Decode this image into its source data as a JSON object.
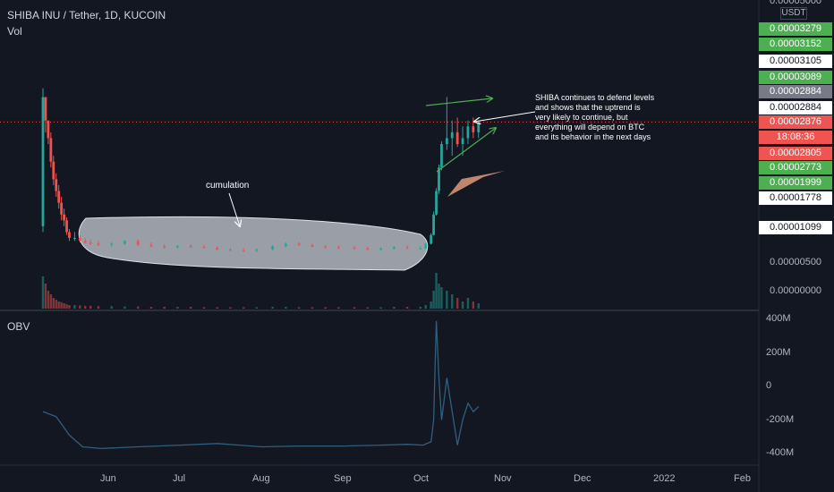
{
  "header": {
    "symbol": "SHIBA INU / Tether, 1D, KUCOIN",
    "vol_label": "Vol",
    "obv_label": "OBV"
  },
  "price_axis": {
    "currency": "USDT",
    "plain_ticks": [
      "0.00000000",
      "0.00000500"
    ],
    "partial_top": "0.00005000",
    "tags": [
      {
        "label": "0.00003279",
        "type": "green"
      },
      {
        "label": "0.00003152",
        "type": "green"
      },
      {
        "label": "0.00003105",
        "type": "white"
      },
      {
        "label": "0.00003089",
        "type": "green"
      },
      {
        "label": "0.00002884",
        "type": "gray"
      },
      {
        "label": "0.00002884",
        "type": "white"
      },
      {
        "label": "0.00002876",
        "type": "red"
      },
      {
        "label": "18:08:36",
        "type": "red"
      },
      {
        "label": "0.00002805",
        "type": "red"
      },
      {
        "label": "0.00002773",
        "type": "green"
      },
      {
        "label": "0.00001999",
        "type": "green"
      },
      {
        "label": "0.00001778",
        "type": "white"
      },
      {
        "label": "0.00001099",
        "type": "white"
      }
    ]
  },
  "obv_axis": {
    "ticks": [
      "400M",
      "200M",
      "0",
      "-200M",
      "-400M"
    ]
  },
  "time_axis": {
    "labels": [
      "Jun",
      "Jul",
      "Aug",
      "Sep",
      "Oct",
      "Nov",
      "Dec",
      "2022",
      "Feb"
    ]
  },
  "annotations": {
    "cumulation": "cumulation",
    "note_lines": [
      "SHIBA continues to defend levels",
      "and shows that the uptrend is",
      "very likely to continue, but",
      "everything will depend on BTC",
      "and its behavior in the next days"
    ]
  },
  "colors": {
    "bg": "#131722",
    "up": "#26a69a",
    "down": "#ef5350",
    "obv_line": "#2f5f7f",
    "green_tag": "#4caf50",
    "red_tag": "#f05450",
    "highlight": "#b8bcc4",
    "arrow": "#4caf50"
  },
  "chart_data": [
    {
      "type": "candlestick",
      "title": "SHIBA INU / Tether, 1D, KUCOIN",
      "ylabel": "USDT",
      "x": [
        "2021-05-10",
        "2021-05-11",
        "2021-05-12",
        "2021-05-13",
        "2021-05-14",
        "2021-05-15",
        "2021-05-16",
        "2021-05-17",
        "2021-05-18",
        "2021-05-19",
        "2021-05-20",
        "2021-05-22",
        "2021-05-24",
        "2021-05-26",
        "2021-05-28",
        "2021-05-31",
        "2021-06-05",
        "2021-06-10",
        "2021-06-15",
        "2021-06-20",
        "2021-06-25",
        "2021-06-30",
        "2021-07-05",
        "2021-07-10",
        "2021-07-15",
        "2021-07-20",
        "2021-07-25",
        "2021-07-30",
        "2021-08-05",
        "2021-08-10",
        "2021-08-15",
        "2021-08-20",
        "2021-08-25",
        "2021-08-30",
        "2021-09-05",
        "2021-09-10",
        "2021-09-15",
        "2021-09-20",
        "2021-09-25",
        "2021-09-30",
        "2021-10-02",
        "2021-10-04",
        "2021-10-05",
        "2021-10-06",
        "2021-10-07",
        "2021-10-08",
        "2021-10-10",
        "2021-10-12",
        "2021-10-14",
        "2021-10-16",
        "2021-10-18",
        "2021-10-20",
        "2021-10-22"
      ],
      "open": [
        1.1e-05,
        3.3e-05,
        2.9e-05,
        2.6e-05,
        2.2e-05,
        1.9e-05,
        1.7e-05,
        1.5e-05,
        1.3e-05,
        1.2e-05,
        1e-05,
        9e-06,
        9e-06,
        8.5e-06,
        8.2e-06,
        8e-06,
        7.8e-06,
        8e-06,
        8.5e-06,
        7.8e-06,
        7.6e-06,
        7.4e-06,
        7.6e-06,
        7.5e-06,
        7.3e-06,
        7e-06,
        6.9e-06,
        6.8e-06,
        7e-06,
        7.6e-06,
        8e-06,
        7.8e-06,
        7.5e-06,
        7.4e-06,
        7.3e-06,
        7.2e-06,
        7e-06,
        7.2e-06,
        7.4e-06,
        7.2e-06,
        7.2e-06,
        8e-06,
        9.5e-06,
        1.3e-05,
        1.7e-05,
        2.1e-05,
        2.5e-05,
        2.6e-05,
        2.7e-05,
        2.5e-05,
        2.6e-05,
        2.8e-05,
        2.7e-05
      ],
      "high": [
        3.45e-05,
        3.3e-05,
        2.9e-05,
        2.7e-05,
        2.3e-05,
        2e-05,
        1.8e-05,
        1.6e-05,
        1.4e-05,
        1.25e-05,
        1.05e-05,
        1e-05,
        9.5e-06,
        9e-06,
        8.7e-06,
        8.5e-06,
        8.3e-06,
        8.6e-06,
        8.8e-06,
        8.2e-06,
        8e-06,
        7.8e-06,
        7.9e-06,
        7.8e-06,
        7.6e-06,
        7.3e-06,
        7.2e-06,
        7.2e-06,
        7.8e-06,
        8.2e-06,
        8.3e-06,
        8e-06,
        7.8e-06,
        7.7e-06,
        7.6e-06,
        7.5e-06,
        7.4e-06,
        7.6e-06,
        7.7e-06,
        7.6e-06,
        8.2e-06,
        9.8e-06,
        1.35e-05,
        1.75e-05,
        2.15e-05,
        2.55e-05,
        3.3e-05,
        2.9e-05,
        2.95e-05,
        2.8e-05,
        2.9e-05,
        2.95e-05,
        2.9e-05
      ],
      "low": [
        1e-05,
        2.7e-05,
        2.5e-05,
        2.1e-05,
        1.8e-05,
        1.6e-05,
        1.4e-05,
        1.2e-05,
        1.1e-05,
        9.5e-06,
        8.5e-06,
        8.5e-06,
        8.2e-06,
        8e-06,
        7.8e-06,
        7.6e-06,
        7.5e-06,
        7.8e-06,
        7.6e-06,
        7.4e-06,
        7.2e-06,
        7.2e-06,
        7.3e-06,
        7.2e-06,
        6.9e-06,
        6.7e-06,
        6.6e-06,
        6.6e-06,
        6.9e-06,
        7.4e-06,
        7.6e-06,
        7.4e-06,
        7.2e-06,
        7.1e-06,
        7e-06,
        6.9e-06,
        6.8e-06,
        7e-06,
        7.1e-06,
        7e-06,
        7.1e-06,
        7.9e-06,
        9.4e-06,
        1.28e-05,
        1.65e-05,
        2.05e-05,
        2.4e-05,
        2.3e-05,
        2.45e-05,
        2.3e-05,
        2.5e-05,
        2.6e-05,
        2.6e-05
      ],
      "close": [
        3.3e-05,
        2.9e-05,
        2.6e-05,
        2.2e-05,
        1.9e-05,
        1.7e-05,
        1.5e-05,
        1.3e-05,
        1.2e-05,
        1e-05,
        9e-06,
        9e-06,
        8.5e-06,
        8.2e-06,
        8e-06,
        7.8e-06,
        8e-06,
        8.5e-06,
        7.8e-06,
        7.6e-06,
        7.4e-06,
        7.6e-06,
        7.5e-06,
        7.3e-06,
        7e-06,
        6.9e-06,
        6.8e-06,
        7e-06,
        7.6e-06,
        8e-06,
        7.8e-06,
        7.5e-06,
        7.4e-06,
        7.3e-06,
        7.2e-06,
        7e-06,
        7.2e-06,
        7.4e-06,
        7.2e-06,
        7.2e-06,
        8e-06,
        9.5e-06,
        1.3e-05,
        1.7e-05,
        2.1e-05,
        2.5e-05,
        2.6e-05,
        2.7e-05,
        2.5e-05,
        2.6e-05,
        2.8e-05,
        2.7e-05,
        2.876e-05
      ],
      "volume": [
        0.9,
        0.7,
        0.5,
        0.4,
        0.3,
        0.25,
        0.2,
        0.18,
        0.15,
        0.12,
        0.1,
        0.1,
        0.09,
        0.08,
        0.08,
        0.07,
        0.07,
        0.06,
        0.06,
        0.05,
        0.05,
        0.05,
        0.05,
        0.04,
        0.04,
        0.04,
        0.04,
        0.04,
        0.05,
        0.05,
        0.04,
        0.04,
        0.04,
        0.04,
        0.04,
        0.04,
        0.04,
        0.05,
        0.05,
        0.05,
        0.1,
        0.2,
        0.5,
        1.0,
        0.7,
        0.6,
        0.5,
        0.4,
        0.3,
        0.2,
        0.3,
        0.2,
        0.15
      ],
      "ylim": [
        0,
        3.4e-05
      ]
    },
    {
      "type": "line",
      "title": "OBV",
      "x": [
        "2021-05-10",
        "2021-05-15",
        "2021-05-20",
        "2021-05-25",
        "2021-06-01",
        "2021-06-15",
        "2021-07-01",
        "2021-07-15",
        "2021-08-01",
        "2021-08-15",
        "2021-09-01",
        "2021-09-15",
        "2021-09-25",
        "2021-10-01",
        "2021-10-04",
        "2021-10-05",
        "2021-10-06",
        "2021-10-07",
        "2021-10-08",
        "2021-10-10",
        "2021-10-12",
        "2021-10-14",
        "2021-10-16",
        "2021-10-18",
        "2021-10-20",
        "2021-10-22"
      ],
      "values": [
        -150,
        -180,
        -290,
        -360,
        -370,
        -360,
        -350,
        -340,
        -360,
        -355,
        -355,
        -350,
        -345,
        -350,
        -330,
        -200,
        390,
        50,
        -200,
        50,
        -150,
        -350,
        -200,
        -100,
        -150,
        -120
      ],
      "units": "M",
      "ylim": [
        -450,
        420
      ]
    }
  ]
}
